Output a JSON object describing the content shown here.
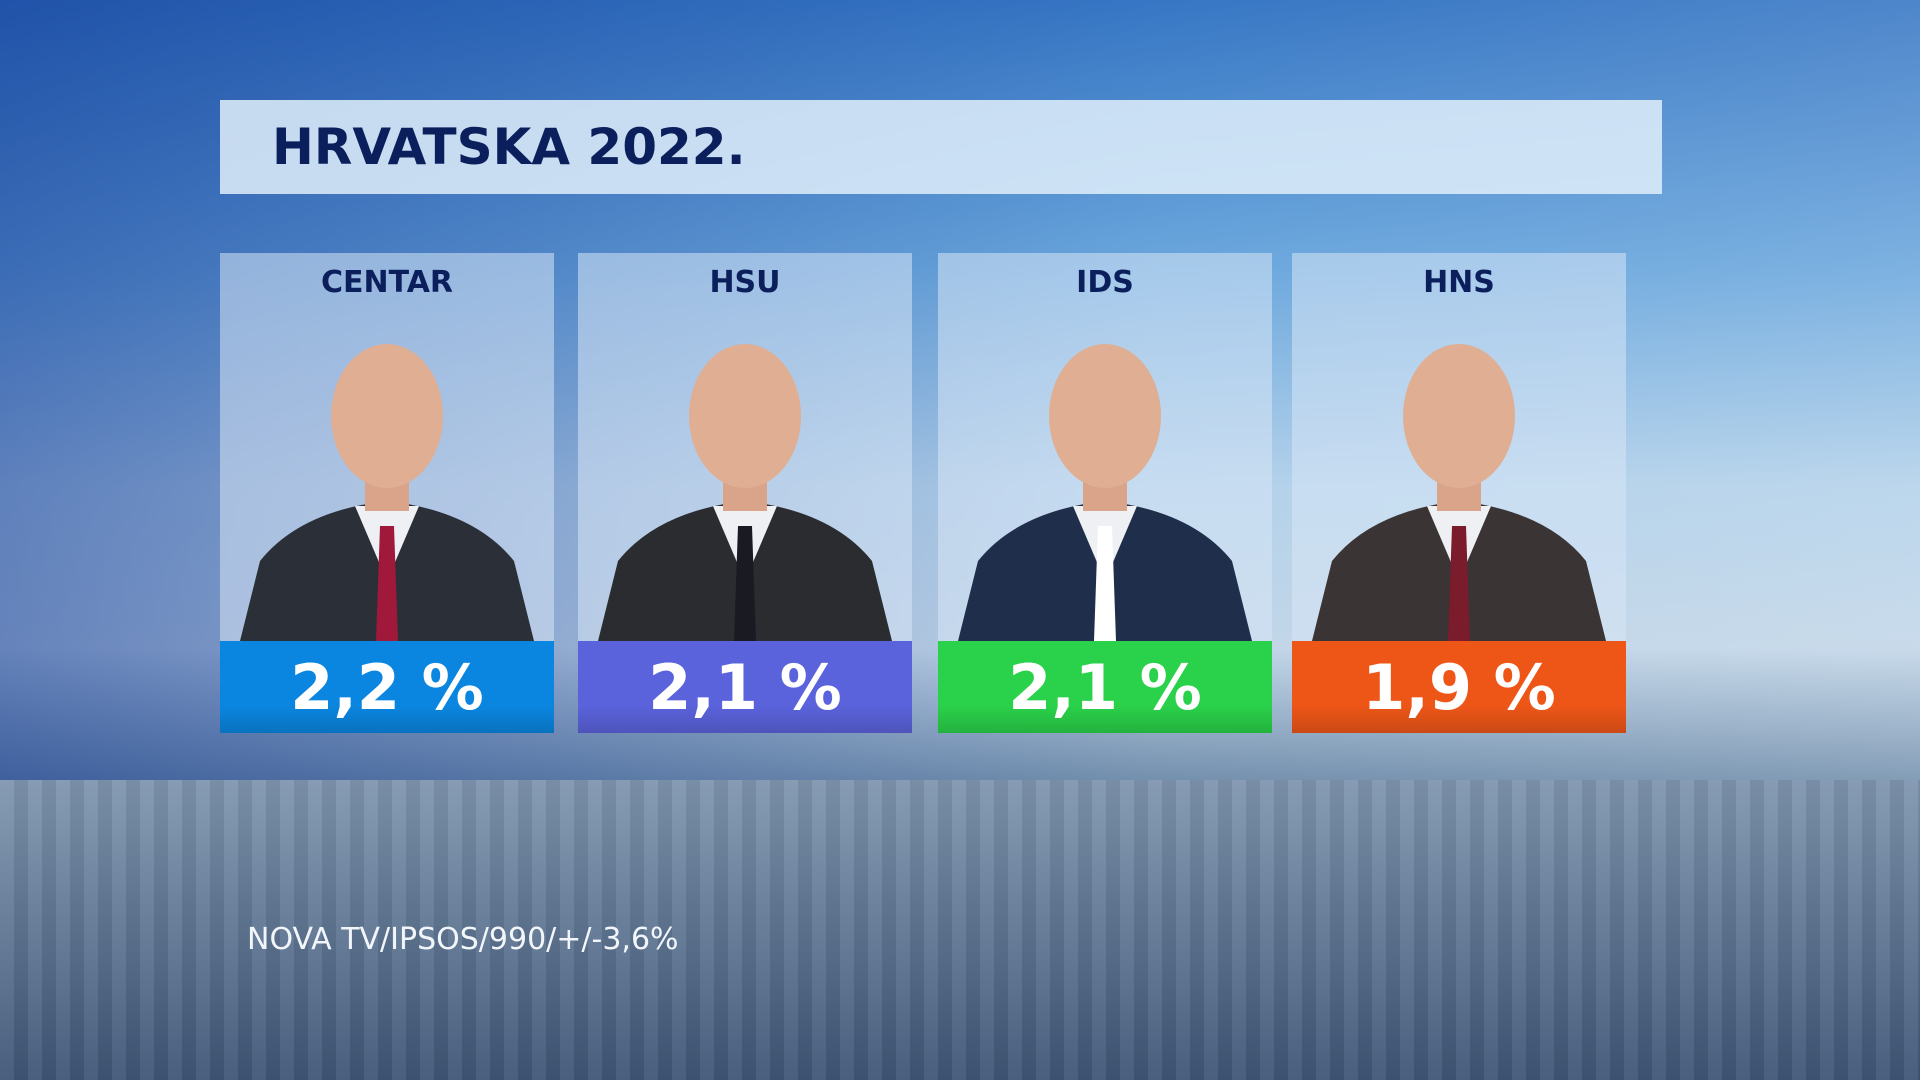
{
  "title": "HRVATSKA 2022.",
  "parties": [
    {
      "name": "CENTAR",
      "value": "2,2 %",
      "color": "#0a86e0"
    },
    {
      "name": "HSU",
      "value": "2,1 %",
      "color": "#5b63dc"
    },
    {
      "name": "IDS",
      "value": "2,1 %",
      "color": "#2ad14a"
    },
    {
      "name": "HNS",
      "value": "1,9 %",
      "color": "#ee5618"
    }
  ],
  "source": "NOVA TV/IPSOS/990/+/-3,6%"
}
